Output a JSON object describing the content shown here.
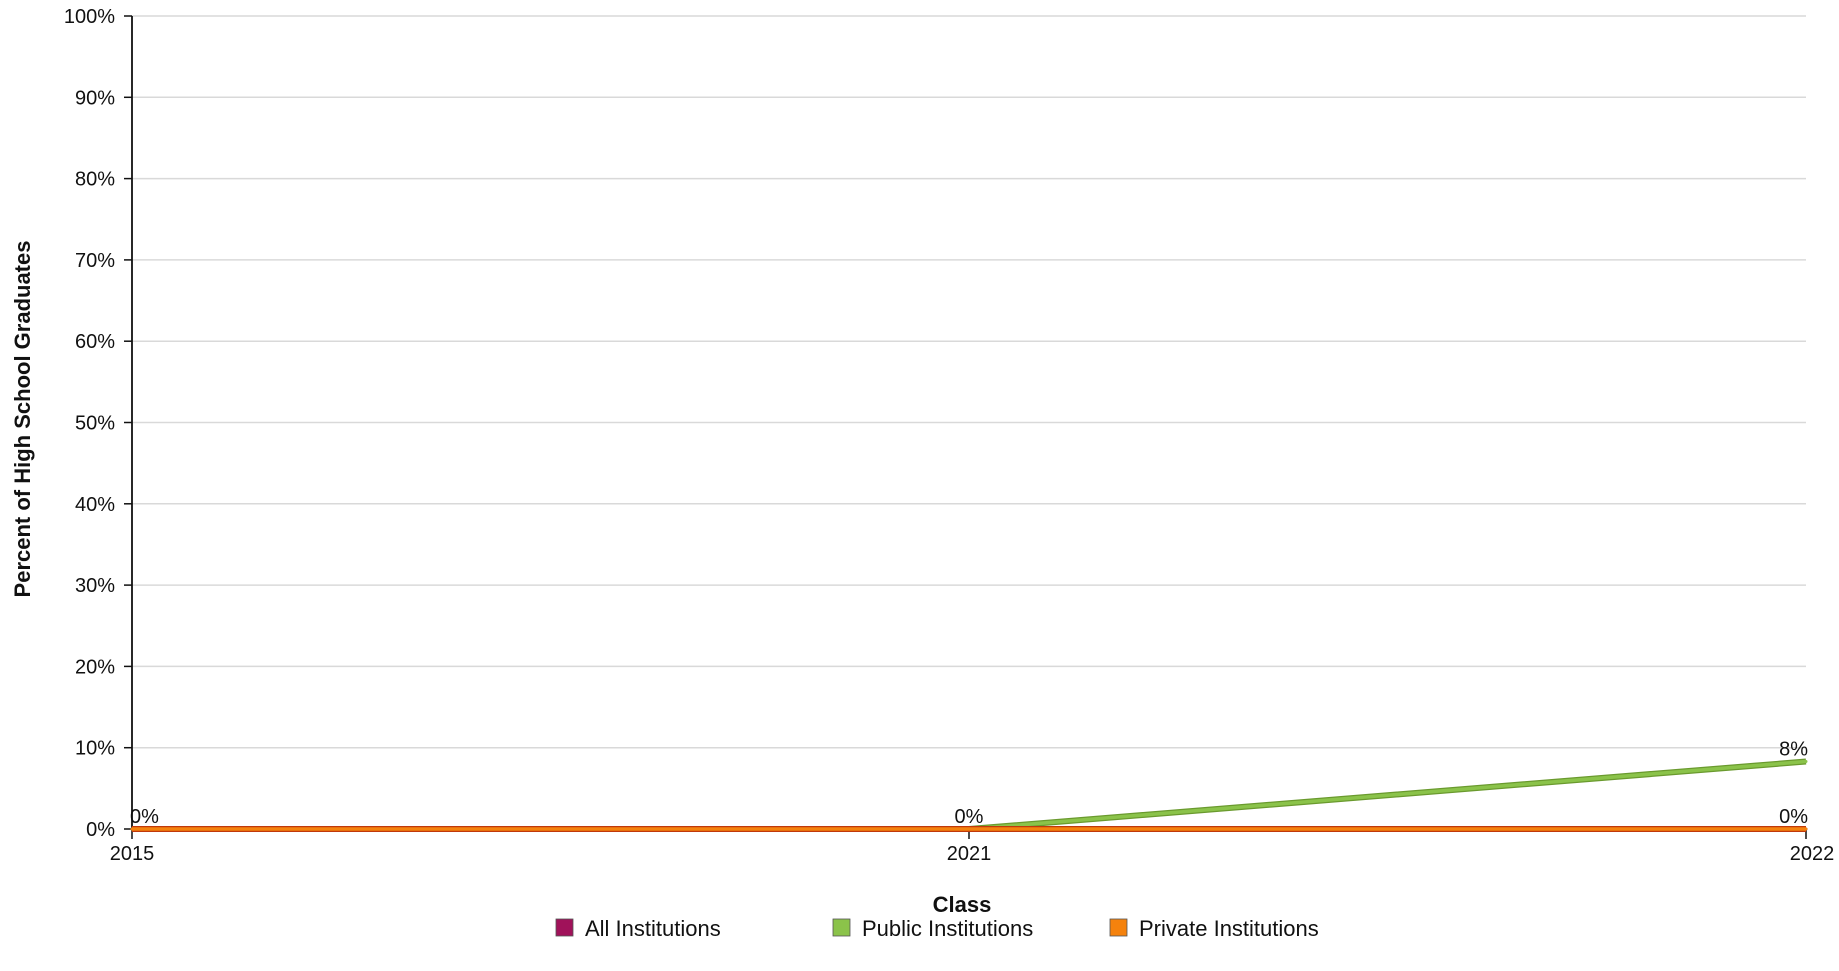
{
  "chart_data": {
    "type": "line",
    "x": [
      "2015",
      "2021",
      "2022"
    ],
    "xlabel": "Class",
    "ylabel": "Percent of High School Graduates",
    "ylim": [
      0,
      100
    ],
    "yticks": [
      0,
      10,
      20,
      30,
      40,
      50,
      60,
      70,
      80,
      90,
      100
    ],
    "ytick_suffix": "%",
    "grid": true,
    "legend_position": "bottom",
    "series": [
      {
        "name": "All Institutions",
        "color": "#a0125a",
        "values": [
          0,
          0,
          0
        ],
        "labels": [
          "",
          "",
          ""
        ]
      },
      {
        "name": "Public Institutions",
        "color": "#8bc34a",
        "values": [
          0,
          0,
          8.3
        ],
        "labels": [
          "",
          "",
          "8%"
        ]
      },
      {
        "name": "Private Institutions",
        "color": "#f5820d",
        "values": [
          0,
          0,
          0
        ],
        "labels": [
          "0%",
          "0%",
          "0%"
        ]
      }
    ]
  }
}
